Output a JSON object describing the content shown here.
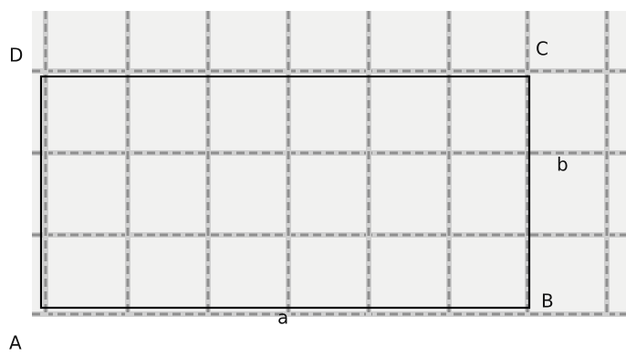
{
  "vertices": [
    "A",
    "B",
    "C",
    "D"
  ],
  "sides": [
    "a",
    "b"
  ]
}
